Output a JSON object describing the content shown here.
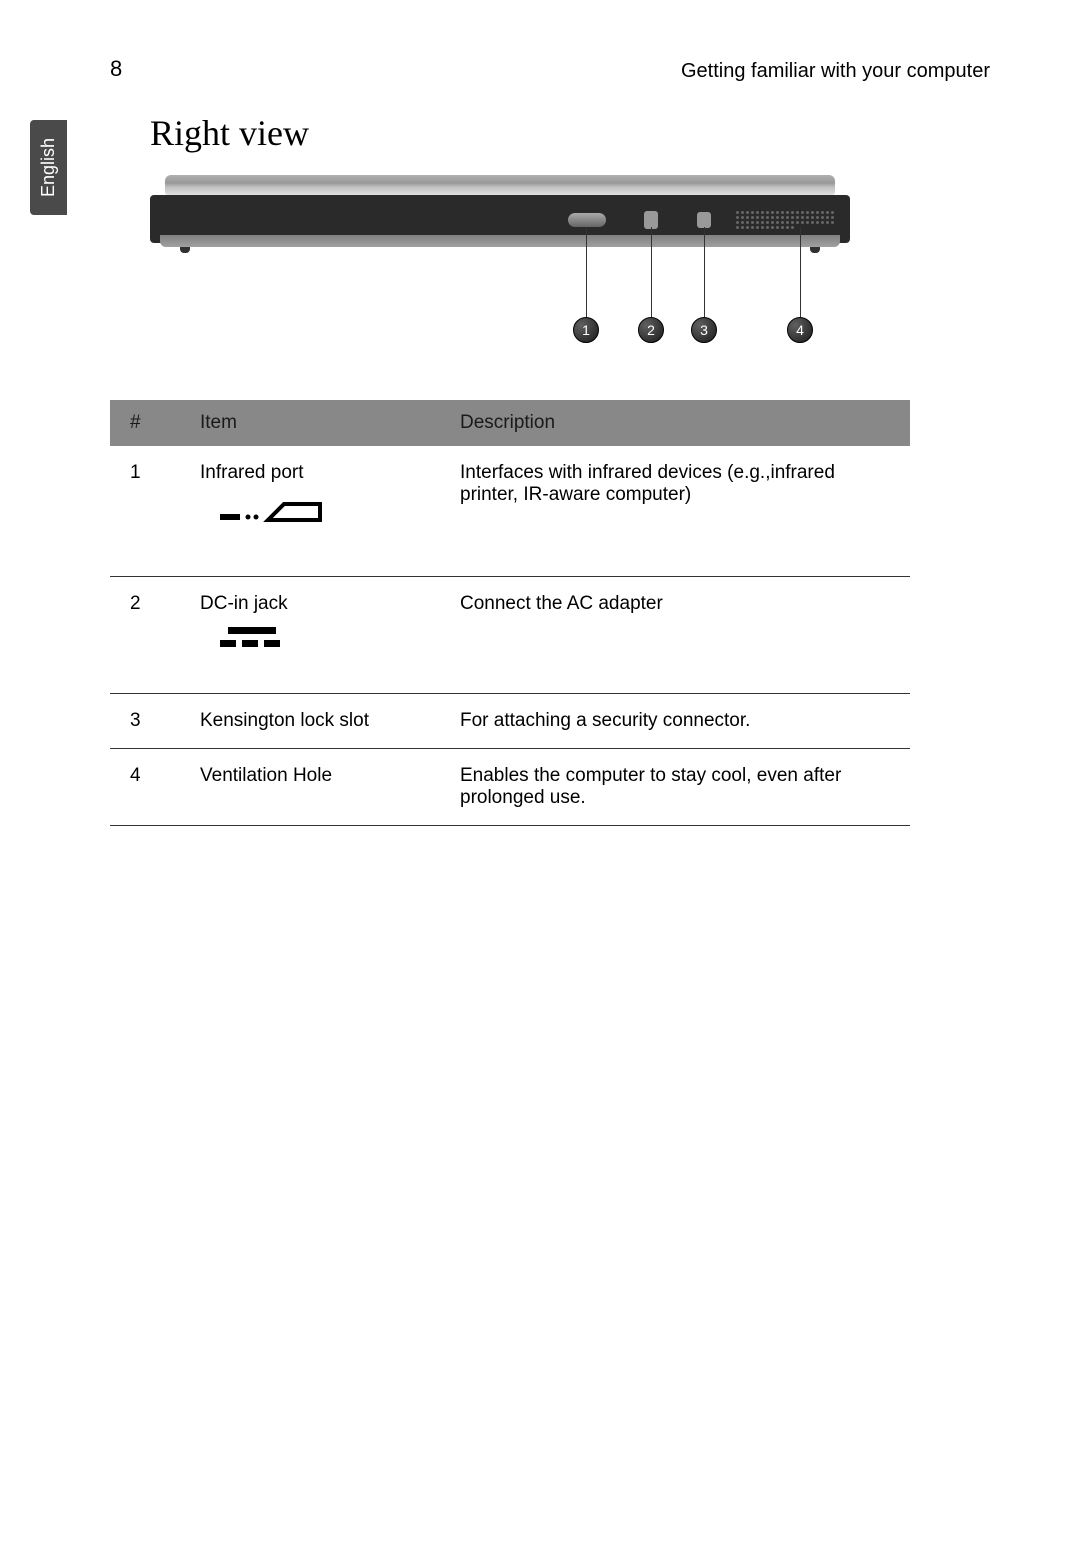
{
  "page": {
    "number": "8",
    "header": "Getting familiar with your computer",
    "language_tab": "English"
  },
  "section_title": "Right view",
  "callouts": {
    "positions": [
      436,
      501,
      554,
      650
    ],
    "labels": [
      "1",
      "2",
      "3",
      "4"
    ]
  },
  "table": {
    "headers": {
      "num": "#",
      "item": "Item",
      "desc": "Description"
    },
    "rows": [
      {
        "num": "1",
        "item": "Infrared port",
        "desc": "Interfaces with infrared devices (e.g.,infrared printer, IR-aware computer)",
        "icon": "infrared"
      },
      {
        "num": "2",
        "item": "DC-in jack",
        "desc": "Connect the AC adapter",
        "icon": "dc-in"
      },
      {
        "num": "3",
        "item": "Kensington lock slot",
        "desc": "For attaching a security connector.",
        "icon": null
      },
      {
        "num": "4",
        "item": "Ventilation Hole",
        "desc": "Enables the computer to stay cool, even after prolonged use.",
        "icon": null
      }
    ]
  },
  "colors": {
    "header_bg": "#888888",
    "text": "#1a1a1a",
    "border": "#333333",
    "tab_bg": "#4a4a4a"
  }
}
